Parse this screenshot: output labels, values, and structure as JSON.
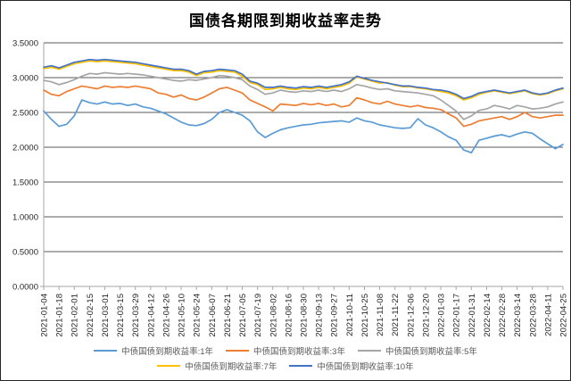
{
  "chart_data": {
    "type": "line",
    "title": "国债各期限到期收益率走势",
    "xlabel": "",
    "ylabel": "",
    "ylim": [
      0.0,
      3.5
    ],
    "y_tick_labels": [
      "3.5000",
      "3.0000",
      "2.5000",
      "2.0000",
      "1.5000",
      "1.0000",
      "0.5000",
      "0.0000"
    ],
    "y_tick_values": [
      3.5,
      3.0,
      2.5,
      2.0,
      1.5,
      1.0,
      0.5,
      0.0
    ],
    "grid": "horizontal",
    "legend_position": "bottom",
    "x": [
      "2021-01-04",
      "2021-01-11",
      "2021-01-18",
      "2021-01-25",
      "2021-02-01",
      "2021-02-08",
      "2021-02-15",
      "2021-02-22",
      "2021-03-01",
      "2021-03-08",
      "2021-03-15",
      "2021-03-22",
      "2021-03-29",
      "2021-04-05",
      "2021-04-12",
      "2021-04-19",
      "2021-04-26",
      "2021-05-03",
      "2021-05-10",
      "2021-05-17",
      "2021-05-24",
      "2021-05-31",
      "2021-06-07",
      "2021-06-14",
      "2021-06-21",
      "2021-06-28",
      "2021-07-05",
      "2021-07-12",
      "2021-07-19",
      "2021-07-26",
      "2021-08-02",
      "2021-08-09",
      "2021-08-16",
      "2021-08-23",
      "2021-08-30",
      "2021-09-06",
      "2021-09-13",
      "2021-09-20",
      "2021-09-27",
      "2021-10-04",
      "2021-10-11",
      "2021-10-18",
      "2021-10-25",
      "2021-11-01",
      "2021-11-08",
      "2021-11-15",
      "2021-11-22",
      "2021-11-29",
      "2021-12-06",
      "2021-12-13",
      "2021-12-20",
      "2021-12-27",
      "2022-01-03",
      "2022-01-10",
      "2022-01-17",
      "2022-01-24",
      "2022-01-31",
      "2022-02-07",
      "2022-02-14",
      "2022-02-21",
      "2022-02-28",
      "2022-03-07",
      "2022-03-14",
      "2022-03-21",
      "2022-03-28",
      "2022-04-04",
      "2022-04-11",
      "2022-04-18",
      "2022-04-25"
    ],
    "x_tick_labels": [
      "2021-01-04",
      "2021-01-18",
      "2021-02-01",
      "2021-02-15",
      "2021-03-01",
      "2021-03-15",
      "2021-03-29",
      "2021-04-12",
      "2021-04-26",
      "2021-05-10",
      "2021-05-24",
      "2021-06-07",
      "2021-06-21",
      "2021-07-05",
      "2021-07-19",
      "2021-08-02",
      "2021-08-16",
      "2021-08-30",
      "2021-09-13",
      "2021-09-27",
      "2021-10-11",
      "2021-10-25",
      "2021-11-08",
      "2021-11-22",
      "2021-12-06",
      "2021-12-20",
      "2022-01-03",
      "2022-01-17",
      "2022-01-31",
      "2022-02-14",
      "2022-02-28",
      "2022-03-14",
      "2022-03-28",
      "2022-04-11",
      "2022-04-25"
    ],
    "series": [
      {
        "name": "中债国债到期收益率:1年",
        "color": "#5B9BD5",
        "values": [
          2.52,
          2.4,
          2.3,
          2.33,
          2.45,
          2.68,
          2.64,
          2.62,
          2.65,
          2.62,
          2.63,
          2.6,
          2.62,
          2.58,
          2.56,
          2.52,
          2.48,
          2.42,
          2.36,
          2.32,
          2.31,
          2.34,
          2.4,
          2.5,
          2.54,
          2.5,
          2.46,
          2.38,
          2.22,
          2.14,
          2.2,
          2.25,
          2.28,
          2.3,
          2.32,
          2.33,
          2.35,
          2.36,
          2.37,
          2.38,
          2.36,
          2.42,
          2.38,
          2.36,
          2.32,
          2.3,
          2.28,
          2.27,
          2.28,
          2.41,
          2.32,
          2.28,
          2.22,
          2.15,
          2.1,
          1.96,
          1.92,
          2.1,
          2.13,
          2.16,
          2.18,
          2.15,
          2.19,
          2.22,
          2.2,
          2.12,
          2.05,
          1.98,
          2.04
        ]
      },
      {
        "name": "中债国债到期收益率:3年",
        "color": "#ED7D31",
        "values": [
          2.82,
          2.76,
          2.74,
          2.8,
          2.84,
          2.88,
          2.86,
          2.84,
          2.88,
          2.86,
          2.87,
          2.86,
          2.88,
          2.86,
          2.84,
          2.78,
          2.76,
          2.72,
          2.75,
          2.7,
          2.68,
          2.72,
          2.78,
          2.84,
          2.86,
          2.82,
          2.78,
          2.68,
          2.63,
          2.58,
          2.52,
          2.62,
          2.61,
          2.6,
          2.63,
          2.61,
          2.63,
          2.6,
          2.62,
          2.58,
          2.6,
          2.71,
          2.68,
          2.64,
          2.62,
          2.66,
          2.62,
          2.6,
          2.58,
          2.6,
          2.57,
          2.56,
          2.54,
          2.48,
          2.42,
          2.3,
          2.33,
          2.38,
          2.4,
          2.42,
          2.44,
          2.4,
          2.44,
          2.5,
          2.44,
          2.42,
          2.44,
          2.46,
          2.46
        ]
      },
      {
        "name": "中债国债到期收益率:5年",
        "color": "#A5A5A5",
        "values": [
          2.96,
          2.94,
          2.9,
          2.93,
          2.97,
          3.02,
          3.06,
          3.05,
          3.07,
          3.06,
          3.05,
          3.06,
          3.05,
          3.04,
          3.02,
          3.0,
          2.98,
          2.96,
          2.95,
          2.97,
          2.96,
          2.98,
          3.0,
          3.03,
          3.02,
          3.0,
          2.97,
          2.88,
          2.83,
          2.76,
          2.78,
          2.82,
          2.8,
          2.79,
          2.81,
          2.8,
          2.82,
          2.8,
          2.82,
          2.8,
          2.84,
          2.9,
          2.88,
          2.85,
          2.83,
          2.84,
          2.81,
          2.8,
          2.79,
          2.78,
          2.76,
          2.74,
          2.68,
          2.6,
          2.52,
          2.4,
          2.45,
          2.53,
          2.55,
          2.6,
          2.58,
          2.55,
          2.6,
          2.58,
          2.55,
          2.56,
          2.58,
          2.62,
          2.65
        ]
      },
      {
        "name": "中债国债到期收益率:7年",
        "color": "#FFC000",
        "values": [
          3.13,
          3.15,
          3.12,
          3.16,
          3.2,
          3.22,
          3.24,
          3.23,
          3.24,
          3.23,
          3.22,
          3.21,
          3.2,
          3.18,
          3.16,
          3.14,
          3.12,
          3.1,
          3.1,
          3.08,
          3.03,
          3.07,
          3.08,
          3.1,
          3.09,
          3.08,
          3.02,
          2.93,
          2.9,
          2.83,
          2.84,
          2.86,
          2.84,
          2.83,
          2.85,
          2.84,
          2.86,
          2.84,
          2.86,
          2.88,
          2.92,
          3.01,
          2.98,
          2.95,
          2.92,
          2.93,
          2.89,
          2.87,
          2.87,
          2.85,
          2.84,
          2.82,
          2.8,
          2.78,
          2.74,
          2.68,
          2.71,
          2.76,
          2.79,
          2.81,
          2.79,
          2.77,
          2.79,
          2.81,
          2.77,
          2.75,
          2.77,
          2.81,
          2.84
        ]
      },
      {
        "name": "中债国债到期收益率:10年",
        "color": "#4472C4",
        "values": [
          3.15,
          3.17,
          3.14,
          3.18,
          3.22,
          3.24,
          3.26,
          3.25,
          3.26,
          3.25,
          3.24,
          3.23,
          3.22,
          3.2,
          3.18,
          3.16,
          3.14,
          3.12,
          3.12,
          3.1,
          3.05,
          3.09,
          3.1,
          3.12,
          3.11,
          3.1,
          3.05,
          2.95,
          2.92,
          2.86,
          2.86,
          2.88,
          2.86,
          2.85,
          2.87,
          2.86,
          2.88,
          2.86,
          2.88,
          2.9,
          2.94,
          3.02,
          2.99,
          2.96,
          2.94,
          2.92,
          2.9,
          2.88,
          2.88,
          2.86,
          2.85,
          2.83,
          2.82,
          2.8,
          2.76,
          2.7,
          2.73,
          2.78,
          2.8,
          2.82,
          2.8,
          2.78,
          2.8,
          2.82,
          2.78,
          2.76,
          2.78,
          2.82,
          2.85
        ]
      }
    ],
    "style": {
      "gridline_color": "#595959",
      "axis_color": "#A6A6A6",
      "tick_label_color": "#262626",
      "legend_text_color": "#595959",
      "background": "#ffffff"
    }
  }
}
